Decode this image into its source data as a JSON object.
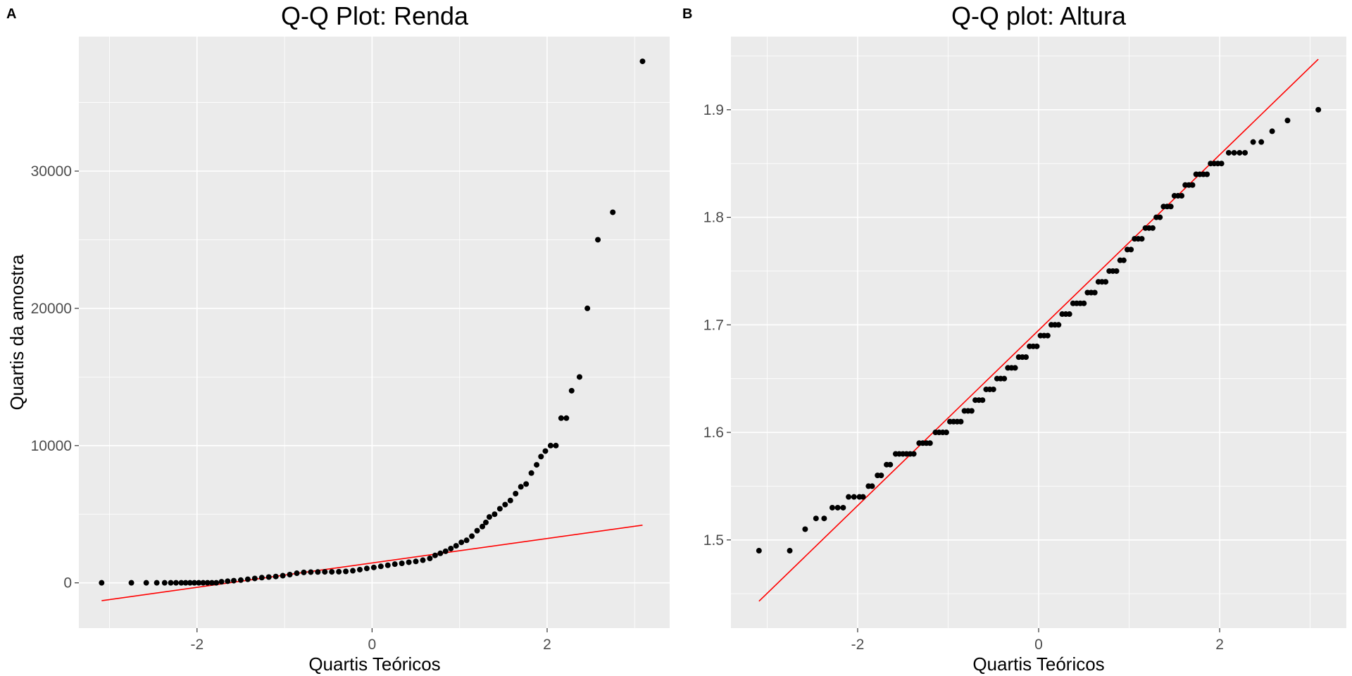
{
  "chart_data": [
    {
      "type": "scatter",
      "panel_tag": "A",
      "title": "Q-Q Plot: Renda",
      "xlabel": "Quartis Teóricos",
      "ylabel": "Quartis da amostra",
      "xlim": [
        -3.35,
        3.4
      ],
      "ylim": [
        -3300,
        39800
      ],
      "xticks": [
        -2,
        0,
        2
      ],
      "xtick_labels": [
        "-2",
        "0",
        "2"
      ],
      "yticks": [
        0,
        10000,
        20000,
        30000
      ],
      "ytick_labels": [
        "0",
        "10000",
        "20000",
        "30000"
      ],
      "grid": true,
      "reference_line": {
        "color": "#ff0000",
        "from": [
          -3.09,
          -1300
        ],
        "to": [
          3.09,
          4200
        ]
      },
      "points": [
        [
          -3.09,
          0
        ],
        [
          -2.75,
          0
        ],
        [
          -2.58,
          0
        ],
        [
          -2.46,
          0
        ],
        [
          -2.37,
          0
        ],
        [
          -2.3,
          0
        ],
        [
          -2.24,
          0
        ],
        [
          -2.18,
          0
        ],
        [
          -2.13,
          0
        ],
        [
          -2.08,
          0
        ],
        [
          -2.03,
          0
        ],
        [
          -1.98,
          0
        ],
        [
          -1.93,
          0
        ],
        [
          -1.88,
          0
        ],
        [
          -1.83,
          0
        ],
        [
          -1.78,
          0
        ],
        [
          -1.72,
          80
        ],
        [
          -1.65,
          120
        ],
        [
          -1.58,
          160
        ],
        [
          -1.5,
          200
        ],
        [
          -1.42,
          260
        ],
        [
          -1.34,
          320
        ],
        [
          -1.26,
          380
        ],
        [
          -1.18,
          420
        ],
        [
          -1.1,
          460
        ],
        [
          -1.02,
          520
        ],
        [
          -0.94,
          600
        ],
        [
          -0.86,
          700
        ],
        [
          -0.78,
          760
        ],
        [
          -0.7,
          780
        ],
        [
          -0.62,
          790
        ],
        [
          -0.54,
          800
        ],
        [
          -0.46,
          800
        ],
        [
          -0.38,
          810
        ],
        [
          -0.3,
          830
        ],
        [
          -0.22,
          880
        ],
        [
          -0.14,
          960
        ],
        [
          -0.06,
          1050
        ],
        [
          0.02,
          1120
        ],
        [
          0.1,
          1200
        ],
        [
          0.18,
          1280
        ],
        [
          0.26,
          1360
        ],
        [
          0.34,
          1420
        ],
        [
          0.42,
          1500
        ],
        [
          0.5,
          1560
        ],
        [
          0.58,
          1650
        ],
        [
          0.66,
          1780
        ],
        [
          0.72,
          2000
        ],
        [
          0.78,
          2150
        ],
        [
          0.84,
          2300
        ],
        [
          0.9,
          2500
        ],
        [
          0.96,
          2700
        ],
        [
          1.02,
          2950
        ],
        [
          1.08,
          3100
        ],
        [
          1.14,
          3400
        ],
        [
          1.2,
          3800
        ],
        [
          1.26,
          4100
        ],
        [
          1.3,
          4400
        ],
        [
          1.34,
          4800
        ],
        [
          1.4,
          5000
        ],
        [
          1.46,
          5400
        ],
        [
          1.52,
          5700
        ],
        [
          1.58,
          6000
        ],
        [
          1.64,
          6500
        ],
        [
          1.7,
          7000
        ],
        [
          1.76,
          7200
        ],
        [
          1.82,
          8000
        ],
        [
          1.88,
          8600
        ],
        [
          1.93,
          9200
        ],
        [
          1.98,
          9600
        ],
        [
          2.04,
          10000
        ],
        [
          2.1,
          10000
        ],
        [
          2.16,
          12000
        ],
        [
          2.22,
          12000
        ],
        [
          2.28,
          14000
        ],
        [
          2.37,
          15000
        ],
        [
          2.46,
          20000
        ],
        [
          2.58,
          25000
        ],
        [
          2.75,
          27000
        ],
        [
          3.09,
          38000
        ]
      ]
    },
    {
      "type": "scatter",
      "panel_tag": "B",
      "title": "Q-Q plot: Altura",
      "xlabel": "Quartis Teóricos",
      "ylabel": "",
      "xlim": [
        -3.4,
        3.4
      ],
      "ylim": [
        1.418,
        1.968
      ],
      "xticks": [
        -2,
        0,
        2
      ],
      "xtick_labels": [
        "-2",
        "0",
        "2"
      ],
      "yticks": [
        1.5,
        1.6,
        1.7,
        1.8,
        1.9
      ],
      "ytick_labels": [
        "1.5",
        "1.6",
        "1.7",
        "1.8",
        "1.9"
      ],
      "grid": true,
      "reference_line": {
        "color": "#ff0000",
        "from": [
          -3.09,
          1.443
        ],
        "to": [
          3.09,
          1.947
        ]
      },
      "points": [
        [
          -3.09,
          1.49
        ],
        [
          -2.75,
          1.49
        ],
        [
          -2.58,
          1.51
        ],
        [
          -2.46,
          1.52
        ],
        [
          -2.37,
          1.52
        ],
        [
          -2.28,
          1.53
        ],
        [
          -2.22,
          1.53
        ],
        [
          -2.16,
          1.53
        ],
        [
          -2.1,
          1.54
        ],
        [
          -2.04,
          1.54
        ],
        [
          -1.98,
          1.54
        ],
        [
          -1.94,
          1.54
        ],
        [
          -1.88,
          1.55
        ],
        [
          -1.84,
          1.55
        ],
        [
          -1.78,
          1.56
        ],
        [
          -1.74,
          1.56
        ],
        [
          -1.68,
          1.57
        ],
        [
          -1.64,
          1.57
        ],
        [
          -1.58,
          1.58
        ],
        [
          -1.54,
          1.58
        ],
        [
          -1.5,
          1.58
        ],
        [
          -1.46,
          1.58
        ],
        [
          -1.42,
          1.58
        ],
        [
          -1.38,
          1.58
        ],
        [
          -1.32,
          1.59
        ],
        [
          -1.28,
          1.59
        ],
        [
          -1.24,
          1.59
        ],
        [
          -1.2,
          1.59
        ],
        [
          -1.14,
          1.6
        ],
        [
          -1.1,
          1.6
        ],
        [
          -1.06,
          1.6
        ],
        [
          -1.02,
          1.6
        ],
        [
          -0.98,
          1.61
        ],
        [
          -0.94,
          1.61
        ],
        [
          -0.9,
          1.61
        ],
        [
          -0.86,
          1.61
        ],
        [
          -0.82,
          1.62
        ],
        [
          -0.78,
          1.62
        ],
        [
          -0.74,
          1.62
        ],
        [
          -0.7,
          1.63
        ],
        [
          -0.66,
          1.63
        ],
        [
          -0.62,
          1.63
        ],
        [
          -0.58,
          1.64
        ],
        [
          -0.54,
          1.64
        ],
        [
          -0.5,
          1.64
        ],
        [
          -0.46,
          1.65
        ],
        [
          -0.42,
          1.65
        ],
        [
          -0.38,
          1.65
        ],
        [
          -0.34,
          1.66
        ],
        [
          -0.3,
          1.66
        ],
        [
          -0.26,
          1.66
        ],
        [
          -0.22,
          1.67
        ],
        [
          -0.18,
          1.67
        ],
        [
          -0.14,
          1.67
        ],
        [
          -0.1,
          1.68
        ],
        [
          -0.06,
          1.68
        ],
        [
          -0.02,
          1.68
        ],
        [
          0.02,
          1.69
        ],
        [
          0.06,
          1.69
        ],
        [
          0.1,
          1.69
        ],
        [
          0.14,
          1.7
        ],
        [
          0.18,
          1.7
        ],
        [
          0.22,
          1.7
        ],
        [
          0.26,
          1.71
        ],
        [
          0.3,
          1.71
        ],
        [
          0.34,
          1.71
        ],
        [
          0.38,
          1.72
        ],
        [
          0.42,
          1.72
        ],
        [
          0.46,
          1.72
        ],
        [
          0.5,
          1.72
        ],
        [
          0.54,
          1.73
        ],
        [
          0.58,
          1.73
        ],
        [
          0.62,
          1.73
        ],
        [
          0.66,
          1.74
        ],
        [
          0.7,
          1.74
        ],
        [
          0.74,
          1.74
        ],
        [
          0.78,
          1.75
        ],
        [
          0.82,
          1.75
        ],
        [
          0.86,
          1.75
        ],
        [
          0.9,
          1.76
        ],
        [
          0.94,
          1.76
        ],
        [
          0.98,
          1.77
        ],
        [
          1.02,
          1.77
        ],
        [
          1.06,
          1.78
        ],
        [
          1.1,
          1.78
        ],
        [
          1.14,
          1.78
        ],
        [
          1.18,
          1.79
        ],
        [
          1.22,
          1.79
        ],
        [
          1.26,
          1.79
        ],
        [
          1.3,
          1.8
        ],
        [
          1.34,
          1.8
        ],
        [
          1.38,
          1.81
        ],
        [
          1.42,
          1.81
        ],
        [
          1.46,
          1.81
        ],
        [
          1.5,
          1.82
        ],
        [
          1.54,
          1.82
        ],
        [
          1.58,
          1.82
        ],
        [
          1.62,
          1.83
        ],
        [
          1.66,
          1.83
        ],
        [
          1.7,
          1.83
        ],
        [
          1.74,
          1.84
        ],
        [
          1.78,
          1.84
        ],
        [
          1.82,
          1.84
        ],
        [
          1.86,
          1.84
        ],
        [
          1.9,
          1.85
        ],
        [
          1.94,
          1.85
        ],
        [
          1.98,
          1.85
        ],
        [
          2.02,
          1.85
        ],
        [
          2.1,
          1.86
        ],
        [
          2.16,
          1.86
        ],
        [
          2.22,
          1.86
        ],
        [
          2.28,
          1.86
        ],
        [
          2.37,
          1.87
        ],
        [
          2.46,
          1.87
        ],
        [
          2.58,
          1.88
        ],
        [
          2.75,
          1.89
        ],
        [
          3.09,
          1.9
        ]
      ]
    }
  ]
}
